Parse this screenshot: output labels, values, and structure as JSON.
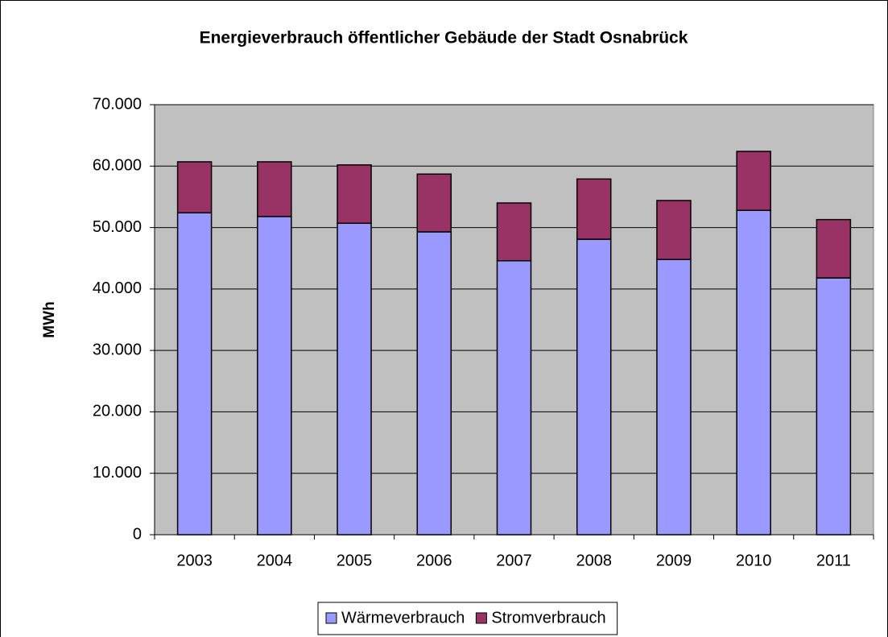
{
  "chart_data": {
    "type": "bar",
    "stacked": true,
    "title": "Energieverbrauch öffentlicher Gebäude der Stadt Osnabrück",
    "y_label": "MWh",
    "categories": [
      "2003",
      "2004",
      "2005",
      "2006",
      "2007",
      "2008",
      "2009",
      "2010",
      "2011"
    ],
    "series": [
      {
        "name": "Wärmeverbrauch",
        "color": "#9999ff",
        "values": [
          52400,
          51800,
          50700,
          49300,
          44600,
          48100,
          44800,
          52800,
          41800
        ]
      },
      {
        "name": "Stromverbrauch",
        "color": "#993366",
        "values": [
          8300,
          8900,
          9500,
          9400,
          9400,
          9800,
          9600,
          9600,
          9500
        ]
      }
    ],
    "ylim": [
      0,
      70000
    ],
    "yticks": [
      0,
      {
        "value": 10000,
        "label": "10.000"
      },
      {
        "value": 20000,
        "label": "20.000"
      },
      {
        "value": 30000,
        "label": "30.000"
      },
      {
        "value": 40000,
        "label": "40.000"
      },
      {
        "value": 50000,
        "label": "50.000"
      },
      {
        "value": 60000,
        "label": "60.000"
      },
      {
        "value": 70000,
        "label": "70.000"
      }
    ],
    "grid": true,
    "legend": "bottom"
  }
}
